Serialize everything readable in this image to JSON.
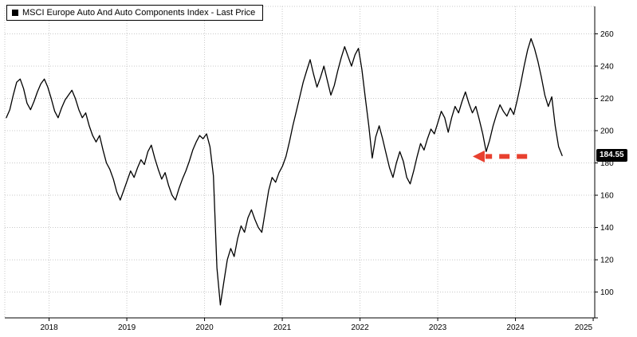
{
  "page": {
    "background": "#ffffff"
  },
  "legend": {
    "swatch_color": "#000000",
    "label": "MSCI Europe Auto And Auto Components Index - Last Price"
  },
  "chart_data": {
    "type": "line",
    "title": "MSCI Europe Auto And Auto Components Index - Last Price",
    "series_name": "MSCI Europe Auto And Auto Components Index - Last Price",
    "xlabel": "",
    "ylabel": "",
    "line_color": "#000000",
    "grid": "dotted",
    "grid_color": "#c8c8c8",
    "legend_position": "top-left",
    "x_start": 2017.45,
    "x_end": 2024.6,
    "xlim": [
      2017.43,
      2025.02
    ],
    "ylim": [
      84,
      277
    ],
    "x_ticks": [
      2018,
      2019,
      2020,
      2021,
      2022,
      2023,
      2024,
      2025
    ],
    "x_tick_labels": [
      "2018",
      "2019",
      "2020",
      "2021",
      "2022",
      "2023",
      "2024",
      "2025"
    ],
    "y_ticks": [
      100,
      120,
      140,
      160,
      180,
      200,
      220,
      240,
      260
    ],
    "last_price": 184.55,
    "last_price_label": "184.55",
    "values": [
      208,
      213,
      222,
      230,
      232,
      226,
      217,
      213,
      218,
      224,
      229,
      232,
      227,
      220,
      212,
      208,
      214,
      219,
      222,
      225,
      220,
      213,
      208,
      211,
      203,
      197,
      193,
      197,
      188,
      180,
      176,
      170,
      162,
      157,
      163,
      169,
      175,
      171,
      177,
      182,
      179,
      187,
      191,
      183,
      176,
      170,
      174,
      166,
      160,
      157,
      164,
      170,
      175,
      181,
      188,
      193,
      197,
      195,
      198,
      190,
      172,
      115,
      92,
      106,
      120,
      127,
      122,
      133,
      141,
      137,
      146,
      151,
      145,
      140,
      137,
      150,
      163,
      171,
      168,
      174,
      178,
      184,
      193,
      203,
      212,
      221,
      230,
      237,
      244,
      235,
      227,
      233,
      240,
      231,
      222,
      228,
      237,
      245,
      252,
      246,
      240,
      247,
      251,
      238,
      220,
      203,
      183,
      196,
      203,
      195,
      186,
      177,
      171,
      180,
      187,
      181,
      171,
      167,
      175,
      184,
      192,
      188,
      195,
      201,
      198,
      205,
      212,
      208,
      199,
      208,
      215,
      211,
      218,
      224,
      217,
      211,
      215,
      207,
      198,
      187,
      194,
      203,
      210,
      216,
      212,
      209,
      214,
      210,
      219,
      229,
      240,
      250,
      257,
      251,
      243,
      233,
      222,
      215,
      221,
      203,
      190,
      184.55
    ],
    "annotations": [
      {
        "type": "dashed-arrow",
        "direction": "left",
        "color": "#e8402f",
        "y": 184,
        "x_tail": 2024.15,
        "x_head": 2023.45,
        "stroke_width": 6
      }
    ]
  }
}
